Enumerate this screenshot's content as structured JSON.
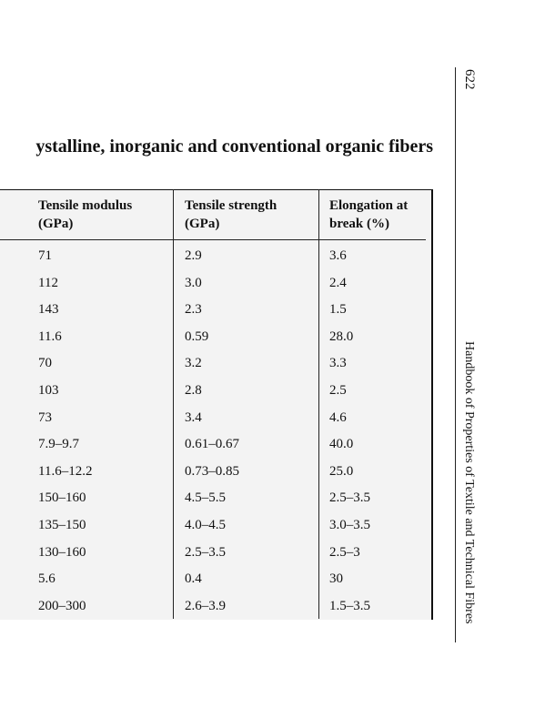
{
  "header": {
    "page_number": "622",
    "running_head": "Handbook of Properties of Textile and Technical Fibres"
  },
  "title": "ystalline, inorganic and conventional organic fibers",
  "table": {
    "columns": [
      [
        "Tensile modulus",
        "(GPa)"
      ],
      [
        "Tensile strength",
        "(GPa)"
      ],
      [
        "Elongation at",
        "break (%)"
      ]
    ],
    "rows": [
      [
        "71",
        "2.9",
        "3.6"
      ],
      [
        "112",
        "3.0",
        "2.4"
      ],
      [
        "143",
        "2.3",
        "1.5"
      ],
      [
        "11.6",
        "0.59",
        "28.0"
      ],
      [
        "70",
        "3.2",
        "3.3"
      ],
      [
        "103",
        "2.8",
        "2.5"
      ],
      [
        "73",
        "3.4",
        "4.6"
      ],
      [
        "7.9–9.7",
        "0.61–0.67",
        "40.0"
      ],
      [
        "11.6–12.2",
        "0.73–0.85",
        "25.0"
      ],
      [
        "150–160",
        "4.5–5.5",
        "2.5–3.5"
      ],
      [
        "135–150",
        "4.0–4.5",
        "3.0–3.5"
      ],
      [
        "130–160",
        "2.5–3.5",
        "2.5–3"
      ],
      [
        "5.6",
        "0.4",
        "30"
      ],
      [
        "200–300",
        "2.6–3.9",
        "1.5–3.5"
      ]
    ]
  }
}
